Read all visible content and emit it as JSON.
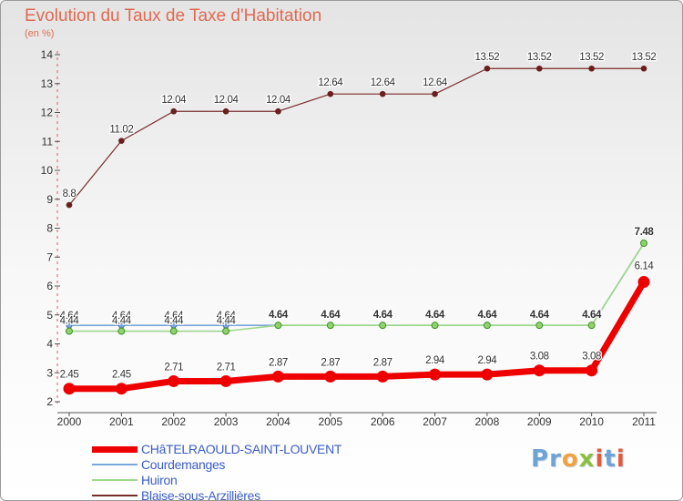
{
  "title": "Evolution du Taux de Taxe d'Habitation",
  "unit": "(en %)",
  "logo": {
    "text": "Proxiti",
    "colors": {
      "P": "#6fa3d6",
      "r": "#6fa3d6",
      "o": "#f2a23a",
      "x": "#8cbf3f",
      "i": "#e25b3a",
      "t": "#6fa3d6"
    }
  },
  "chart_data": {
    "type": "line",
    "title": "Evolution du Taux de Taxe d'Habitation",
    "ylabel": "(en %)",
    "xlabel": "",
    "categories": [
      "2000",
      "2001",
      "2002",
      "2003",
      "2004",
      "2005",
      "2006",
      "2007",
      "2008",
      "2009",
      "2010",
      "2011"
    ],
    "ylim": [
      2,
      14
    ],
    "yticks": [
      2,
      3,
      4,
      5,
      6,
      7,
      8,
      9,
      10,
      11,
      12,
      13,
      14
    ],
    "grid": false,
    "series": [
      {
        "name": "CHâTELRAOULD-SAINT-LOUVENT",
        "color": "#ee0000",
        "values": [
          2.45,
          2.45,
          2.71,
          2.71,
          2.87,
          2.87,
          2.87,
          2.94,
          2.94,
          3.08,
          3.08,
          6.14
        ],
        "labels": [
          "2.45",
          "2.45",
          "2.71",
          "2.71",
          "2.87",
          "2.87",
          "2.87",
          "2.94",
          "2.94",
          "3.08",
          "3.08",
          "6.14"
        ]
      },
      {
        "name": "Courdemanges",
        "color": "#7aa6d9",
        "values": [
          4.64,
          4.64,
          4.64,
          4.64,
          4.64,
          4.64,
          4.64,
          4.64,
          4.64,
          4.64,
          4.64,
          7.48
        ],
        "labels": [
          "4.64",
          "4.64",
          "4.64",
          "4.64",
          "",
          "",
          "",
          "",
          "",
          "",
          "",
          ""
        ]
      },
      {
        "name": "Huiron",
        "color": "#9fd88a",
        "values": [
          4.44,
          4.44,
          4.44,
          4.44,
          4.64,
          4.64,
          4.64,
          4.64,
          4.64,
          4.64,
          4.64,
          7.48
        ],
        "labels": [
          "4.44",
          "4.44",
          "4.44",
          "4.44",
          "4.64",
          "4.64",
          "4.64",
          "4.64",
          "4.64",
          "4.64",
          "4.64",
          "7.48"
        ]
      },
      {
        "name": "Blaise-sous-Arzillières",
        "color": "#7a2b2b",
        "values": [
          8.8,
          11.02,
          12.04,
          12.04,
          12.04,
          12.64,
          12.64,
          12.64,
          13.52,
          13.52,
          13.52,
          13.52
        ],
        "labels": [
          "8.8",
          "11.02",
          "12.04",
          "12.04",
          "12.04",
          "12.64",
          "12.64",
          "12.64",
          "13.52",
          "13.52",
          "13.52",
          "13.52"
        ]
      }
    ]
  }
}
